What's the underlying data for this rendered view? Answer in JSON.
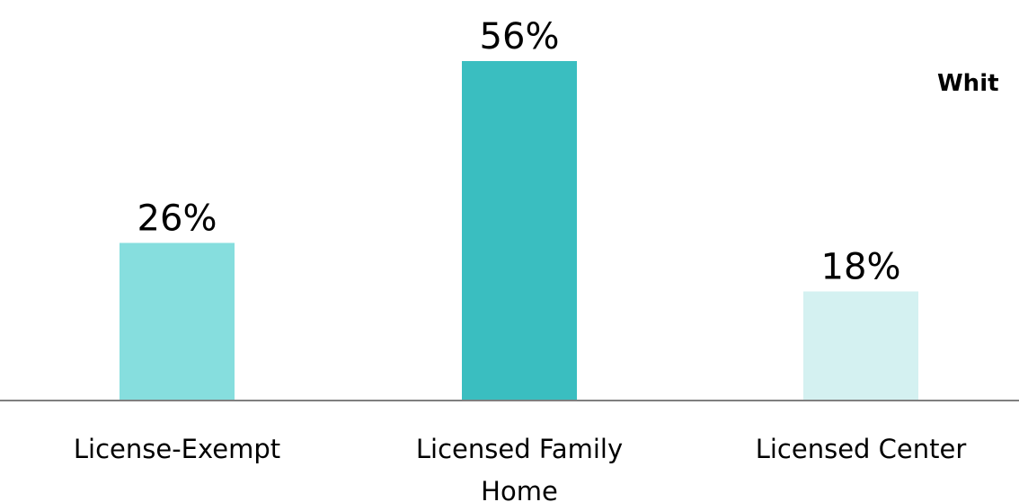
{
  "chart_data": {
    "type": "bar",
    "title": "Whit",
    "categories": [
      "License-Exempt",
      "Licensed Family Home",
      "Licensed Center"
    ],
    "category_lines": [
      [
        "License-Exempt"
      ],
      [
        "Licensed Family",
        "Home"
      ],
      [
        "Licensed Center"
      ]
    ],
    "values": [
      26,
      56,
      18
    ],
    "value_labels": [
      "26%",
      "56%",
      "18%"
    ],
    "bar_colors": [
      "#86DEDE",
      "#3ABEC0",
      "#D4F1F1"
    ],
    "axis_color": "#7F7F7F",
    "ylim": [
      0,
      60
    ],
    "grid": false
  }
}
